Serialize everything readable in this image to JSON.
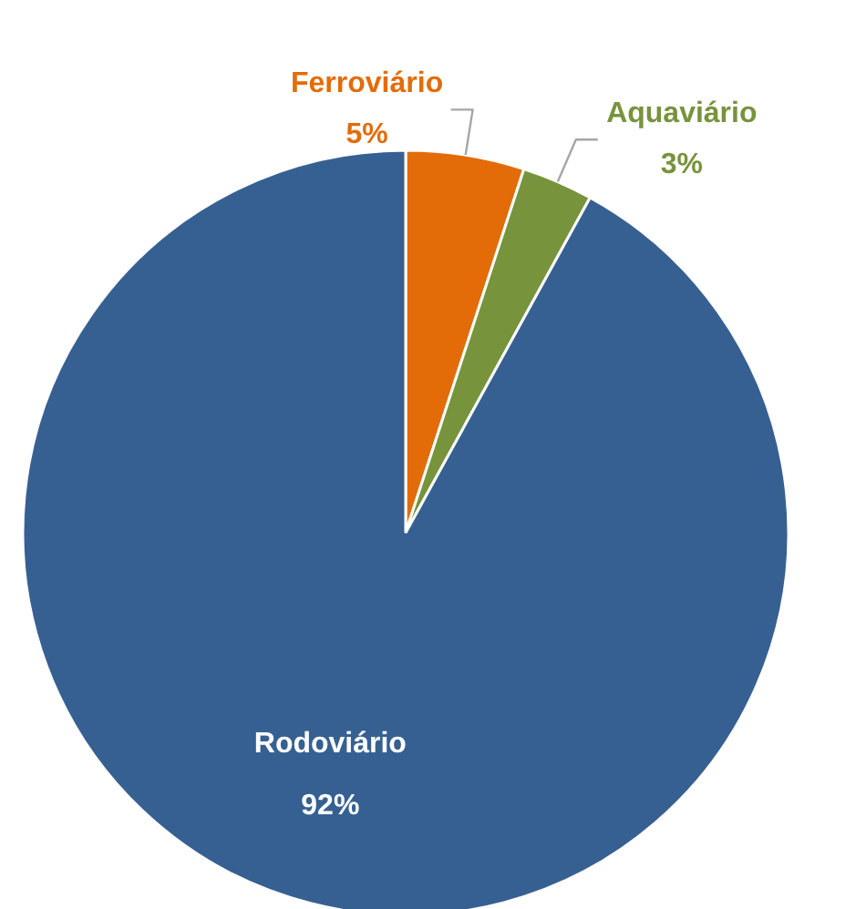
{
  "chart_data": {
    "type": "pie",
    "categories": [
      "Ferroviário",
      "Aquaviário",
      "Rodoviário"
    ],
    "values": [
      5,
      3,
      92
    ],
    "colors": [
      "#e36c09",
      "#77933c",
      "#376092"
    ],
    "value_labels": [
      "5%",
      "3%",
      "92%"
    ]
  }
}
